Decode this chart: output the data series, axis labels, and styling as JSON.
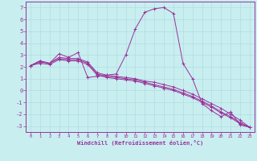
{
  "xlabel": "Windchill (Refroidissement éolien,°C)",
  "background_color": "#c8eef0",
  "grid_color": "#b0dde0",
  "line_color": "#993399",
  "xlim": [
    -0.5,
    23.5
  ],
  "ylim": [
    -3.5,
    7.5
  ],
  "xticks": [
    0,
    1,
    2,
    3,
    4,
    5,
    6,
    7,
    8,
    9,
    10,
    11,
    12,
    13,
    14,
    15,
    16,
    17,
    18,
    19,
    20,
    21,
    22,
    23
  ],
  "yticks": [
    -3,
    -2,
    -1,
    0,
    1,
    2,
    3,
    4,
    5,
    6,
    7
  ],
  "series": [
    [
      2.1,
      2.5,
      2.3,
      3.1,
      2.8,
      3.2,
      1.1,
      1.2,
      1.3,
      1.4,
      3.0,
      5.2,
      6.6,
      6.9,
      7.0,
      6.5,
      2.3,
      1.0,
      -1.1,
      -1.7,
      -2.2,
      -1.8,
      -2.9,
      -3.1
    ],
    [
      2.1,
      2.5,
      2.3,
      2.8,
      2.7,
      2.7,
      2.4,
      1.5,
      1.3,
      1.2,
      1.1,
      1.0,
      0.8,
      0.7,
      0.5,
      0.3,
      0.0,
      -0.3,
      -0.7,
      -1.1,
      -1.5,
      -2.0,
      -2.5,
      -3.1
    ],
    [
      2.1,
      2.4,
      2.3,
      2.7,
      2.6,
      2.6,
      2.3,
      1.4,
      1.2,
      1.1,
      1.0,
      0.9,
      0.7,
      0.5,
      0.3,
      0.1,
      -0.2,
      -0.5,
      -0.9,
      -1.3,
      -1.8,
      -2.2,
      -2.7,
      -3.1
    ],
    [
      2.1,
      2.3,
      2.2,
      2.6,
      2.5,
      2.5,
      2.2,
      1.3,
      1.1,
      1.0,
      0.9,
      0.8,
      0.6,
      0.4,
      0.2,
      0.0,
      -0.3,
      -0.6,
      -1.0,
      -1.4,
      -1.9,
      -2.3,
      -2.8,
      -3.1
    ]
  ]
}
